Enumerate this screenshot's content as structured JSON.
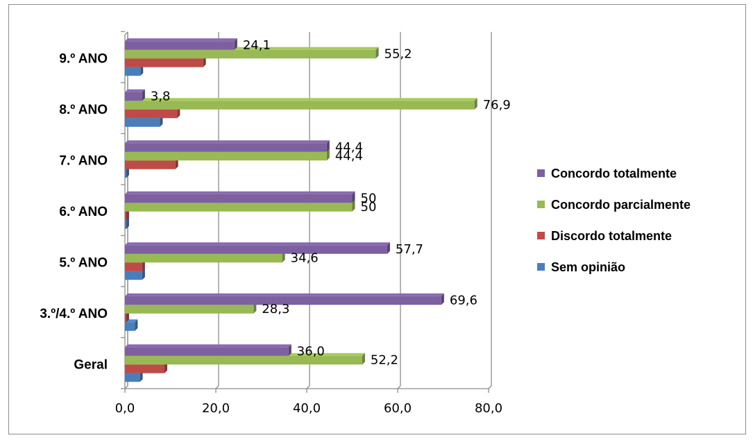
{
  "chart_data": {
    "type": "bar",
    "orientation": "horizontal",
    "categories": [
      "Geral",
      "3.º/4.º ANO",
      "5.º ANO",
      "6.º ANO",
      "7.º ANO",
      "8.º ANO",
      "9.º ANO"
    ],
    "series": [
      {
        "name": "Sem opinião",
        "color": "#4a7ebb",
        "values": [
          3.3,
          2.2,
          3.8,
          0.3,
          0.3,
          7.7,
          3.4
        ]
      },
      {
        "name": "Discordo totalmente",
        "color": "#be4b48",
        "values": [
          8.7,
          0.3,
          3.8,
          0.3,
          11.1,
          11.5,
          17.2
        ]
      },
      {
        "name": "Concordo parcialmente",
        "color": "#98b954",
        "values": [
          52.2,
          28.3,
          34.6,
          50,
          44.4,
          76.9,
          55.2
        ]
      },
      {
        "name": "Concordo totalmente",
        "color": "#7d60a0",
        "values": [
          36.0,
          69.6,
          57.7,
          50,
          44.4,
          3.8,
          24.1
        ]
      }
    ],
    "data_labels": {
      "Concordo parcialmente": [
        "52,2",
        "28,3",
        "34,6",
        "50",
        "44,4",
        "76,9",
        "55,2"
      ],
      "Concordo totalmente": [
        "36,0",
        "69,6",
        "57,7",
        "50",
        "44,4",
        "3,8",
        "24,1"
      ]
    },
    "x_ticks": [
      "0,0",
      "20,0",
      "40,0",
      "60,0",
      "80,0"
    ],
    "xlim": [
      0,
      80
    ],
    "legend_entries": [
      "Concordo totalmente",
      "Concordo parcialmente",
      "Discordo totalmente",
      "Sem opinião"
    ],
    "legend_position": "right",
    "grid": true,
    "title": "",
    "xlabel": "",
    "ylabel": ""
  }
}
